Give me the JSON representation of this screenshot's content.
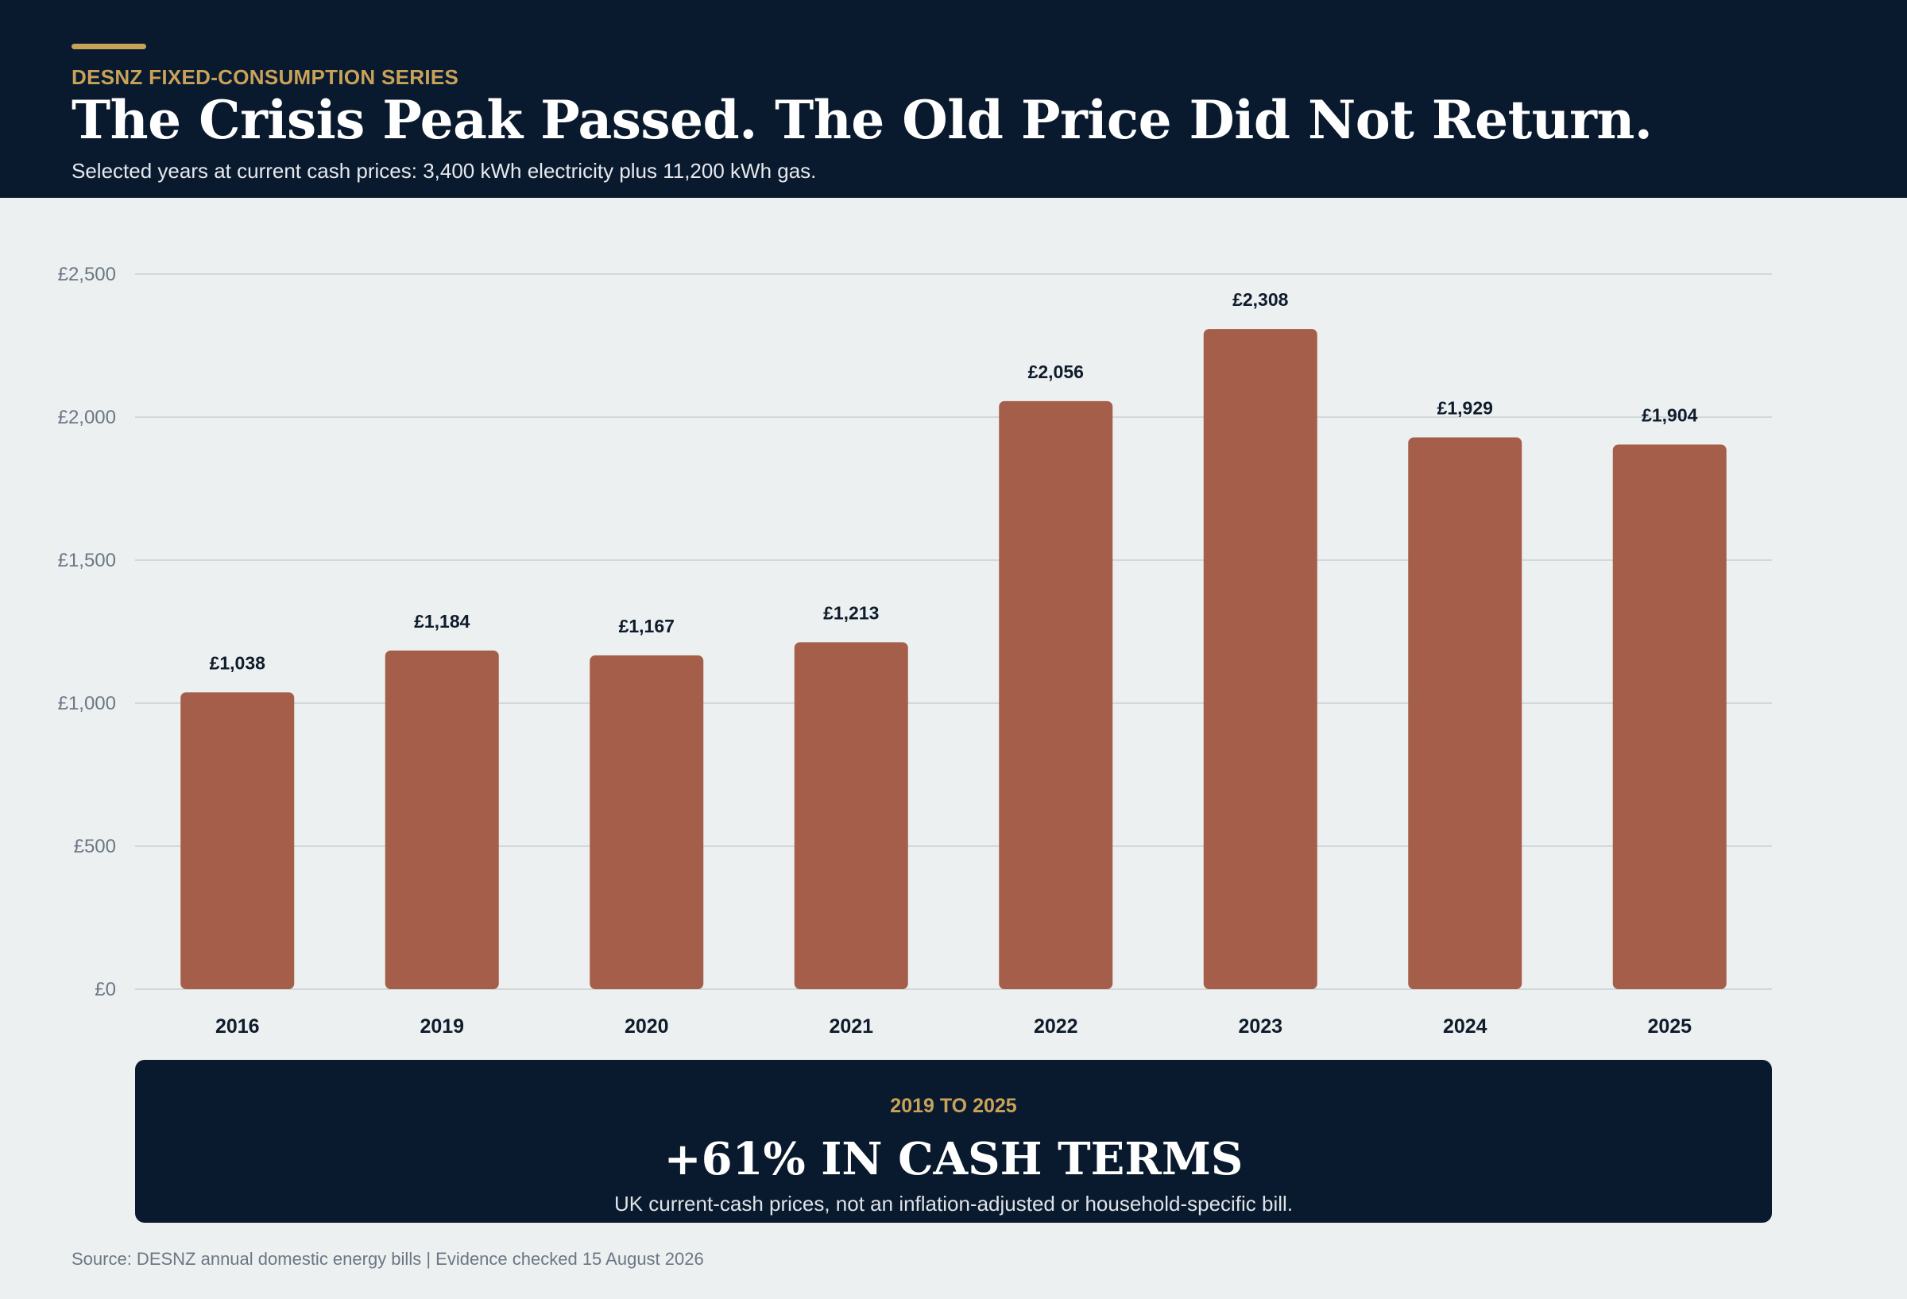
{
  "header": {
    "eyebrow": "DESNZ FIXED-CONSUMPTION SERIES",
    "title": "The Crisis Peak Passed. The Old Price Did Not Return.",
    "subtitle": "Selected years at current cash prices: 3,400 kWh electricity plus 11,200 kWh gas."
  },
  "colors": {
    "header_bg": "#0a1a2e",
    "accent": "#c9a25a",
    "bar": "#a45e49",
    "page_bg": "#edf0f0"
  },
  "chart_data": {
    "type": "bar",
    "categories": [
      "2016",
      "2019",
      "2020",
      "2021",
      "2022",
      "2023",
      "2024",
      "2025"
    ],
    "values": [
      1038,
      1184,
      1167,
      1213,
      2056,
      2308,
      1929,
      1904
    ],
    "value_labels": [
      "£1,038",
      "£1,184",
      "£1,167",
      "£1,213",
      "£2,056",
      "£2,308",
      "£1,929",
      "£1,904"
    ],
    "ylim": [
      0,
      2500
    ],
    "yticks": [
      0,
      500,
      1000,
      1500,
      2000,
      2500
    ],
    "ytick_labels": [
      "£0",
      "£500",
      "£1,000",
      "£1,500",
      "£2,000",
      "£2,500"
    ],
    "grid": true
  },
  "callout": {
    "kicker": "2019 TO 2025",
    "headline": "+61% IN CASH TERMS",
    "note": "UK current-cash prices, not an inflation-adjusted or household-specific bill."
  },
  "footer": {
    "source": "Source: DESNZ annual domestic energy bills | Evidence checked 15 August 2026"
  }
}
